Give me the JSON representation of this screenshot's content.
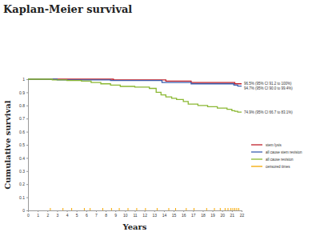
{
  "chart_data": {
    "type": "line",
    "title": "Kaplan-Meier survival",
    "x_label": "Years",
    "y_label": "Cumulative survival",
    "xlim": [
      0,
      22
    ],
    "xticks": [
      0,
      1,
      2,
      3,
      4,
      5,
      6,
      7,
      8,
      9,
      10,
      11,
      12,
      13,
      14,
      15,
      16,
      17,
      18,
      19,
      20,
      21,
      22
    ],
    "ylim": [
      0,
      1
    ],
    "yticks": [
      0,
      0.1,
      0.2,
      0.3,
      0.4,
      0.5,
      0.6,
      0.7,
      0.8,
      0.9,
      1
    ],
    "grid": false,
    "legend": "right",
    "series": [
      {
        "name": "stem lysis",
        "type": "step",
        "color": "#c0202a",
        "line_style": "solid",
        "x": [
          0,
          8.8,
          14.2,
          16.8,
          21.3,
          22
        ],
        "values": [
          1,
          0.995,
          0.985,
          0.975,
          0.965,
          0.965
        ]
      },
      {
        "name": "all cause stem revision",
        "type": "step",
        "color": "#3a5fb0",
        "line_style": "solid",
        "x": [
          0,
          3,
          8.5,
          13.8,
          16.8,
          21.2,
          21.6,
          22
        ],
        "values": [
          1,
          0.995,
          0.99,
          0.975,
          0.965,
          0.955,
          0.947,
          0.947
        ]
      },
      {
        "name": "all cause revision",
        "type": "step",
        "color": "#8ab832",
        "line_style": "solid",
        "x": [
          0,
          2.5,
          4,
          5.5,
          6.5,
          7.5,
          8.5,
          9.5,
          11,
          12.5,
          13.2,
          13.7,
          14.2,
          14.8,
          15.3,
          16,
          16.5,
          17.5,
          18.5,
          19.5,
          20.5,
          21,
          21.3,
          21.6,
          22
        ],
        "values": [
          1,
          0.995,
          0.99,
          0.985,
          0.975,
          0.965,
          0.955,
          0.945,
          0.94,
          0.93,
          0.9,
          0.88,
          0.865,
          0.855,
          0.845,
          0.83,
          0.81,
          0.8,
          0.79,
          0.78,
          0.77,
          0.76,
          0.755,
          0.749,
          0.749
        ]
      },
      {
        "name": "censored times",
        "type": "scatter",
        "color": "#f5a700",
        "marker": "vline",
        "x": [
          2.3,
          3.6,
          4.5,
          5.8,
          6.4,
          7.7,
          8.6,
          9.4,
          10.3,
          11.2,
          12.1,
          13.3,
          14.5,
          15.2,
          16.3,
          17.1,
          18.4,
          19.2,
          19.8,
          20.3,
          20.6,
          20.9,
          21.1,
          21.3,
          21.5,
          21.7
        ],
        "values": [
          0,
          0,
          0,
          0,
          0,
          0,
          0,
          0,
          0,
          0,
          0,
          0,
          0,
          0,
          0,
          0,
          0,
          0,
          0,
          0,
          0,
          0,
          0,
          0,
          0,
          0
        ]
      }
    ],
    "annotations": [
      {
        "text": "96.5% (95% CI 91.2 to 100%)",
        "x": 22,
        "y": 0.965
      },
      {
        "text": "94.7% (95% CI 90.0 to 99.4%)",
        "x": 22,
        "y": 0.947
      },
      {
        "text": "74.9% (95% CI 66.7 to 83.1%)",
        "x": 22,
        "y": 0.749
      }
    ]
  }
}
